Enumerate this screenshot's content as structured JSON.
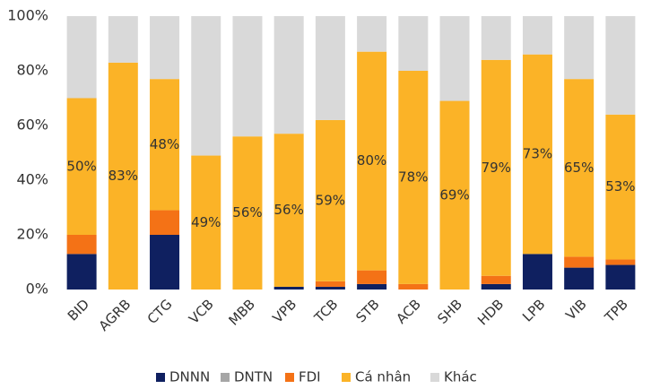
{
  "chart_data": {
    "type": "stacked-bar",
    "categories": [
      "BID",
      "AGRB",
      "CTG",
      "VCB",
      "MBB",
      "VPB",
      "TCB",
      "STB",
      "ACB",
      "SHB",
      "HDB",
      "LPB",
      "VIB",
      "TPB"
    ],
    "series": [
      {
        "name": "DNNN",
        "color": "#0f2060",
        "values": [
          13,
          0,
          20,
          0,
          0,
          1,
          1,
          2,
          0,
          0,
          2,
          13,
          8,
          9
        ]
      },
      {
        "name": "DNTN",
        "color": "#a6a6a6",
        "values": [
          0,
          0,
          0,
          0,
          0,
          0,
          0,
          0,
          0,
          0,
          0,
          0,
          0,
          0
        ]
      },
      {
        "name": "FDI",
        "color": "#f47216",
        "values": [
          7,
          0,
          9,
          0,
          0,
          0,
          2,
          5,
          2,
          0,
          3,
          0,
          4,
          2
        ]
      },
      {
        "name": "Cá nhân",
        "color": "#fbb327",
        "values": [
          50,
          83,
          48,
          49,
          56,
          56,
          59,
          80,
          78,
          69,
          79,
          73,
          65,
          53
        ],
        "value_labels": [
          "50%",
          "83%",
          "48%",
          "49%",
          "56%",
          "56%",
          "59%",
          "80%",
          "78%",
          "69%",
          "79%",
          "73%",
          "65%",
          "53%"
        ]
      },
      {
        "name": "Khác",
        "color": "#d9d9d9",
        "values": [
          30,
          17,
          23,
          51,
          44,
          43,
          38,
          13,
          20,
          31,
          16,
          14,
          23,
          36
        ]
      }
    ],
    "ylim": [
      0,
      100
    ],
    "yticks": [
      {
        "value": 0,
        "label": "0%"
      },
      {
        "value": 20,
        "label": "20%"
      },
      {
        "value": 40,
        "label": "40%"
      },
      {
        "value": 60,
        "label": "60%"
      },
      {
        "value": 80,
        "label": "80%"
      },
      {
        "value": 100,
        "label": "100%"
      }
    ],
    "legend": "bottom"
  }
}
